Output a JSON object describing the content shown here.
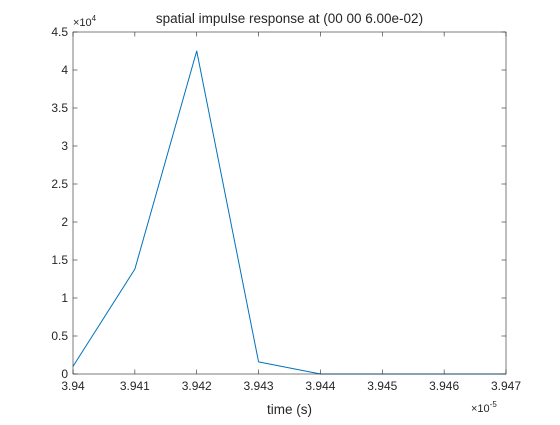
{
  "chart_data": {
    "type": "line",
    "title": "spatial impulse response at (00 00 6.00e-02)",
    "xlabel": "time (s)",
    "ylabel": "",
    "x_exponent": {
      "base": "×10",
      "power": "-5"
    },
    "y_exponent": {
      "base": "×10",
      "power": "4"
    },
    "xlim": [
      3.94,
      3.947
    ],
    "ylim": [
      0,
      4.5
    ],
    "x_ticks": [
      3.94,
      3.941,
      3.942,
      3.943,
      3.944,
      3.945,
      3.946,
      3.947
    ],
    "x_tick_labels": [
      "3.94",
      "3.941",
      "3.942",
      "3.943",
      "3.944",
      "3.945",
      "3.946",
      "3.947"
    ],
    "y_ticks": [
      0,
      0.5,
      1,
      1.5,
      2,
      2.5,
      3,
      3.5,
      4,
      4.5
    ],
    "y_tick_labels": [
      "0",
      "0.5",
      "1",
      "1.5",
      "2",
      "2.5",
      "3",
      "3.5",
      "4",
      "4.5"
    ],
    "grid": false,
    "box": true,
    "series": [
      {
        "color": "#0072bd",
        "x": [
          3.94,
          3.941,
          3.942,
          3.943,
          3.944,
          3.945,
          3.946,
          3.947
        ],
        "y": [
          0.1,
          1.38,
          4.25,
          0.16,
          0.0,
          0.0,
          0.0,
          0.0
        ]
      }
    ]
  }
}
